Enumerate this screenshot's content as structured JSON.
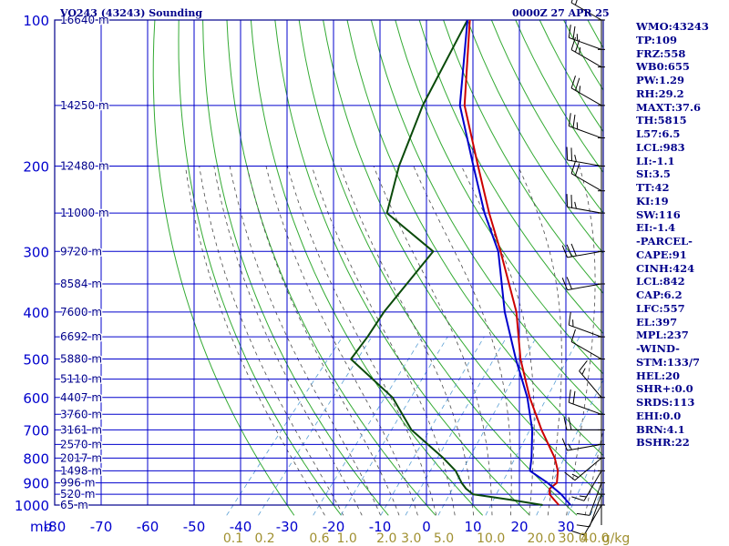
{
  "header": {
    "title": "VO243 (43243) Sounding",
    "time": "0000Z 27 APR 25"
  },
  "indices": [
    "WMO:43243",
    "TP:109",
    "FRZ:558",
    "WB0:655",
    "PW:1.29",
    "RH:29.2",
    "MAXT:37.6",
    "TH:5815",
    "L57:6.5",
    "LCL:983",
    "LI:-1.1",
    "SI:3.5",
    "TT:42",
    "KI:19",
    "SW:116",
    "EI:-1.4",
    "-PARCEL-",
    "CAPE:91",
    "CINH:424",
    "LCL:842",
    "CAP:6.2",
    "LFC:557",
    "EL:397",
    "MPL:237",
    "-WIND-",
    "STM:133/7",
    "HEL:20",
    "SHR+:0.0",
    "SRDS:113",
    "EHI:0.0",
    "BRN:4.1",
    "BSHR:22"
  ],
  "colors": {
    "frame": "#00008b",
    "isobar": "#0000cd",
    "isotherm": "#0000cd",
    "dry_adiabat": "#33aa33",
    "moist_adiabat": "#4a4a4a",
    "mixing_ratio": "#5a9fd4",
    "temperature": "#cc0000",
    "dewpoint": "#0a4a0a",
    "parcel": "#0000cc",
    "axis_text": "#0000cd",
    "mixing_ratio_text": "#a09030"
  },
  "chart_data": {
    "type": "line",
    "chart_kind": "skew-T log-P sounding",
    "title": "VO243 (43243) Sounding",
    "xlabel": "mb",
    "x_unit": "degC",
    "xlim": [
      -80,
      40
    ],
    "y_unit": "hPa",
    "y_scale": "log",
    "ylim": [
      1000,
      100
    ],
    "pressure_ticks": [
      100,
      200,
      300,
      400,
      500,
      600,
      700,
      800,
      900,
      1000
    ],
    "pressure_tick_labels": [
      "100",
      "200",
      "300",
      "400",
      "500",
      "600",
      "700",
      "800",
      "900",
      "1000"
    ],
    "temperature_ticks": [
      -80,
      -70,
      -60,
      -50,
      -40,
      -30,
      -20,
      -10,
      0,
      10,
      20,
      30
    ],
    "temperature_tick_labels": [
      "-80",
      "-70",
      "-60",
      "-50",
      "-40",
      "-30",
      "-20",
      "-10",
      "0",
      "10",
      "20",
      "30"
    ],
    "mixing_ratio_values": [
      0.1,
      0.2,
      0.6,
      1.0,
      2.0,
      3.0,
      5.0,
      10.0,
      20.0,
      30.0,
      40.0
    ],
    "mixing_ratio_labels": [
      "0.1",
      "0.2",
      "0.6",
      "1.0",
      "2.0",
      "3.0",
      "5.0",
      "10.0",
      "20.0",
      "30.0",
      "40.0"
    ],
    "mixing_ratio_unit": "g/kg",
    "height_levels": [
      {
        "p": 100,
        "label": "16640 m"
      },
      {
        "p": 150,
        "label": "14250 m"
      },
      {
        "p": 200,
        "label": "12480 m"
      },
      {
        "p": 250,
        "label": "11000 m"
      },
      {
        "p": 300,
        "label": "9720 m"
      },
      {
        "p": 350,
        "label": "8584 m"
      },
      {
        "p": 400,
        "label": "7600 m"
      },
      {
        "p": 450,
        "label": "6692 m"
      },
      {
        "p": 500,
        "label": "5880 m"
      },
      {
        "p": 550,
        "label": "5110 m"
      },
      {
        "p": 600,
        "label": "4407 m"
      },
      {
        "p": 650,
        "label": "3760 m"
      },
      {
        "p": 700,
        "label": "3161 m"
      },
      {
        "p": 750,
        "label": "2570 m"
      },
      {
        "p": 800,
        "label": "2017 m"
      },
      {
        "p": 850,
        "label": "1498 m"
      },
      {
        "p": 900,
        "label": "996 m"
      },
      {
        "p": 950,
        "label": "520 m"
      },
      {
        "p": 1000,
        "label": "65 m"
      }
    ],
    "series": [
      {
        "id": "temperature",
        "points": [
          [
            1000,
            28.5
          ],
          [
            975,
            26.5
          ],
          [
            950,
            24.5
          ],
          [
            925,
            23.5
          ],
          [
            900,
            24
          ],
          [
            850,
            22
          ],
          [
            800,
            19
          ],
          [
            700,
            11
          ],
          [
            600,
            2.5
          ],
          [
            500,
            -6.5
          ],
          [
            400,
            -16
          ],
          [
            300,
            -30.5
          ],
          [
            250,
            -40
          ],
          [
            200,
            -51
          ],
          [
            150,
            -65
          ],
          [
            100,
            -79.5
          ]
        ]
      },
      {
        "id": "dewpoint",
        "points": [
          [
            1000,
            25
          ],
          [
            975,
            17
          ],
          [
            950,
            8
          ],
          [
            925,
            5.5
          ],
          [
            900,
            3.5
          ],
          [
            850,
            0
          ],
          [
            800,
            -5
          ],
          [
            700,
            -17
          ],
          [
            600,
            -27
          ],
          [
            500,
            -43
          ],
          [
            450,
            -43.5
          ],
          [
            400,
            -44.5
          ],
          [
            300,
            -45
          ],
          [
            250,
            -62
          ],
          [
            200,
            -68
          ],
          [
            150,
            -74
          ],
          [
            100,
            -80
          ]
        ]
      },
      {
        "id": "parcel",
        "points": [
          [
            1000,
            31
          ],
          [
            950,
            27
          ],
          [
            900,
            22
          ],
          [
            850,
            16
          ],
          [
            800,
            14
          ],
          [
            700,
            9
          ],
          [
            600,
            2
          ],
          [
            500,
            -7.5
          ],
          [
            400,
            -18.5
          ],
          [
            300,
            -31
          ],
          [
            250,
            -41
          ],
          [
            200,
            -52
          ],
          [
            150,
            -66
          ],
          [
            100,
            -80
          ]
        ]
      }
    ],
    "wind_barbs": [
      {
        "p": 100,
        "dir": 300,
        "kt": 20
      },
      {
        "p": 115,
        "dir": 290,
        "kt": 25
      },
      {
        "p": 125,
        "dir": 300,
        "kt": 25
      },
      {
        "p": 150,
        "dir": 300,
        "kt": 25
      },
      {
        "p": 175,
        "dir": 290,
        "kt": 25
      },
      {
        "p": 200,
        "dir": 280,
        "kt": 25
      },
      {
        "p": 225,
        "dir": 300,
        "kt": 20
      },
      {
        "p": 250,
        "dir": 280,
        "kt": 25
      },
      {
        "p": 300,
        "dir": 260,
        "kt": 30
      },
      {
        "p": 350,
        "dir": 260,
        "kt": 20
      },
      {
        "p": 450,
        "dir": 290,
        "kt": 15
      },
      {
        "p": 500,
        "dir": 300,
        "kt": 10
      },
      {
        "p": 600,
        "dir": 320,
        "kt": 15
      },
      {
        "p": 650,
        "dir": 290,
        "kt": 20
      },
      {
        "p": 700,
        "dir": 270,
        "kt": 20
      },
      {
        "p": 750,
        "dir": 260,
        "kt": 15
      },
      {
        "p": 800,
        "dir": 230,
        "kt": 15
      },
      {
        "p": 850,
        "dir": 210,
        "kt": 15
      },
      {
        "p": 900,
        "dir": 200,
        "kt": 10
      },
      {
        "p": 950,
        "dir": 200,
        "kt": 10
      },
      {
        "p": 1000,
        "dir": 210,
        "kt": 10
      }
    ]
  }
}
